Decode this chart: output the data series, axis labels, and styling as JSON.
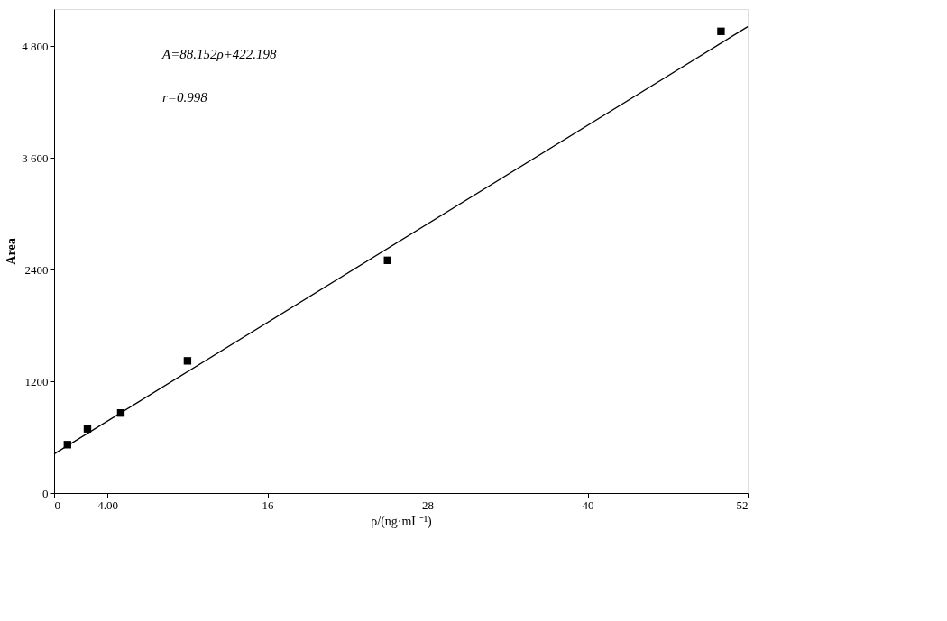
{
  "chart_data": {
    "type": "scatter",
    "xlabel": "ρ/(ng·mL⁻¹)",
    "ylabel": "Area",
    "xlim": [
      0,
      52
    ],
    "xticks": [
      0,
      {
        "value": 4,
        "label": "4.00"
      },
      16,
      28,
      40,
      52
    ],
    "ylim": [
      0,
      5200
    ],
    "yticks": [
      0,
      1200,
      2400,
      {
        "value": 3600,
        "label": "3 600"
      },
      {
        "value": 4800,
        "label": "4 800"
      }
    ],
    "series": [
      {
        "marker": "square",
        "color": "#000000",
        "x": [
          1,
          2.5,
          5,
          10,
          25,
          50
        ],
        "values": [
          520,
          690,
          860,
          1420,
          2500,
          4960
        ]
      },
      {
        "type": "line",
        "marker": "none",
        "color": "#000000",
        "x": [
          0,
          52
        ],
        "values": [
          420,
          5010
        ]
      }
    ],
    "annotations": [
      "A=88.152ρ+422.198",
      "r=0.998"
    ],
    "grid": false
  }
}
